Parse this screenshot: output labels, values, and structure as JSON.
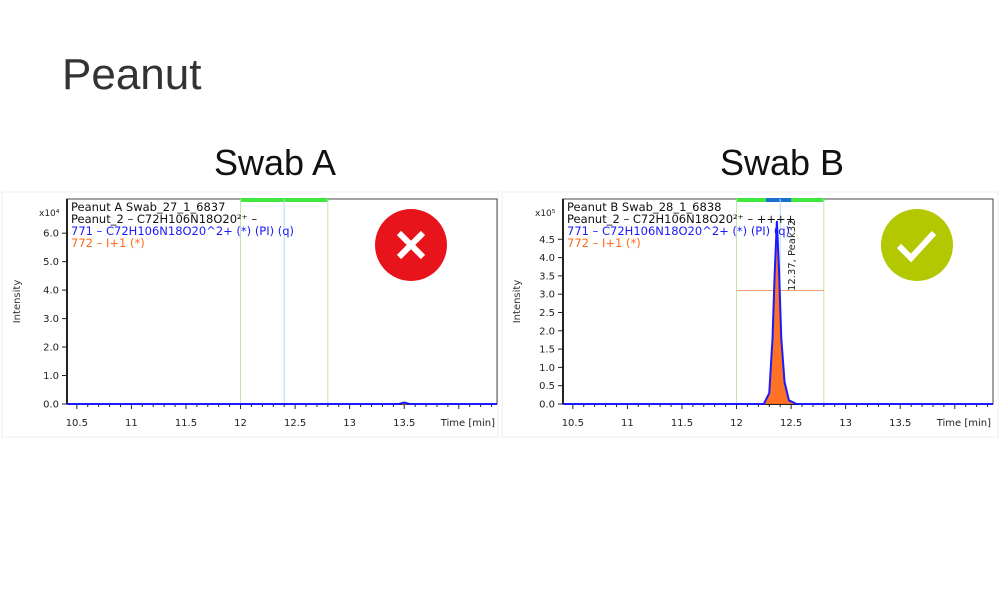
{
  "page_title": "Peanut",
  "chart_data": [
    {
      "type": "line",
      "title": "Swab A",
      "status_icon": "cross-icon",
      "status_color": "#e8141c",
      "legend": [
        "Peanut A Swab_27_1_6837",
        "Peanut_2 – C72H106N18O20²⁺ –",
        "771 – C72H106N18O20^2+ (*) (PI) (q)",
        "772 – I+1 (*)"
      ],
      "legend_colors": [
        "#111111",
        "#111111",
        "#1a1aff",
        "#ff6a1a"
      ],
      "xlabel": "Time [min]",
      "ylabel": "Intensity",
      "y_multiplier": "x10⁴",
      "xlim": [
        10.41,
        14.35
      ],
      "ylim": [
        0,
        7.2
      ],
      "xticks": [
        "10.5",
        "11",
        "11.5",
        "12",
        "12.5",
        "13",
        "13.5"
      ],
      "yticks": [
        "0.0",
        "1.0",
        "2.0",
        "3.0",
        "4.0",
        "5.0",
        "6.0"
      ],
      "integration_window": [
        12.0,
        12.8
      ],
      "marker_time": 12.4,
      "series": [
        {
          "color": "#1a1aff",
          "x": [
            10.41,
            13.45,
            13.5,
            13.55,
            14.35
          ],
          "y": [
            0,
            0,
            0.05,
            0,
            0
          ]
        },
        {
          "color": "#ff6a1a",
          "x": [
            10.41,
            14.35
          ],
          "y": [
            0,
            0
          ]
        }
      ]
    },
    {
      "type": "area",
      "title": "Swab B",
      "status_icon": "check-icon",
      "status_color": "#b3c800",
      "legend": [
        "Peanut B Swab_28_1_6838",
        "Peanut_2 – C72H106N18O20²⁺ – ++++",
        "771 – C72H106N18O20^2+ (*) (PI) (q)",
        "772 – I+1 (*)"
      ],
      "legend_colors": [
        "#111111",
        "#111111",
        "#1a1aff",
        "#ff6a1a"
      ],
      "xlabel": "Time [min]",
      "ylabel": "Intensity",
      "y_multiplier": "x10⁵",
      "xlim": [
        10.41,
        14.35
      ],
      "ylim": [
        0,
        5.6
      ],
      "xticks": [
        "10.5",
        "11",
        "11.5",
        "12",
        "12.5",
        "13",
        "13.5"
      ],
      "yticks": [
        "0.0",
        "0.5",
        "1.0",
        "1.5",
        "2.0",
        "2.5",
        "3.0",
        "3.5",
        "4.0",
        "4.5"
      ],
      "integration_window": [
        12.0,
        12.8
      ],
      "marker_time": 12.4,
      "threshold": 3.1,
      "peak_label": "12.37, Peak32",
      "peak_rt": 12.37,
      "series": [
        {
          "color": "#1a1aff",
          "x": [
            10.41,
            12.25,
            12.3,
            12.33,
            12.35,
            12.37,
            12.39,
            12.41,
            12.44,
            12.48,
            12.55,
            14.35
          ],
          "y": [
            0,
            0,
            0.3,
            1.8,
            3.6,
            5.0,
            3.6,
            1.8,
            0.6,
            0.1,
            0,
            0
          ]
        },
        {
          "color": "#ff6a1a",
          "x": [
            10.41,
            12.25,
            12.3,
            12.33,
            12.35,
            12.37,
            12.39,
            12.41,
            12.44,
            12.48,
            12.55,
            14.35
          ],
          "y": [
            0,
            0,
            0.25,
            1.6,
            3.3,
            4.6,
            3.3,
            1.6,
            0.5,
            0.1,
            0,
            0
          ]
        }
      ]
    }
  ]
}
